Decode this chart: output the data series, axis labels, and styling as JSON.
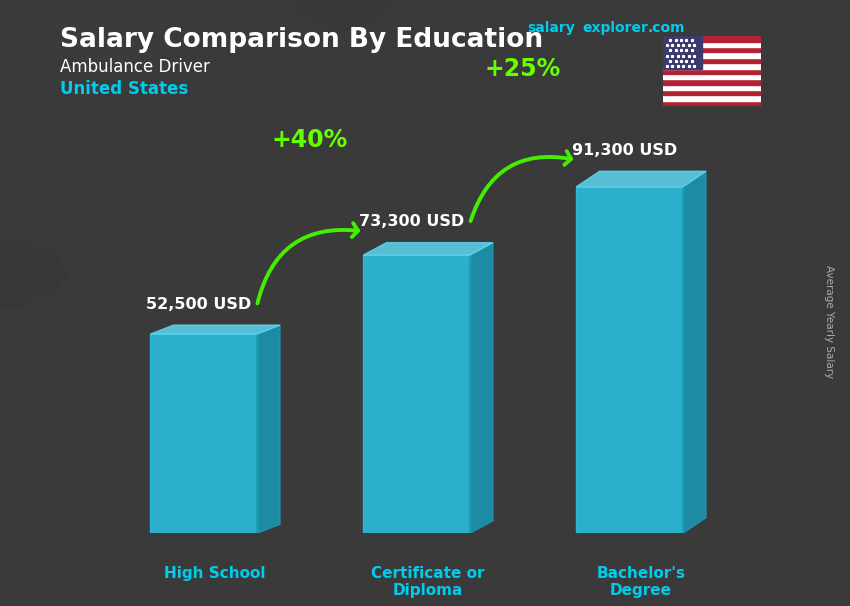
{
  "title": "Salary Comparison By Education",
  "subtitle": "Ambulance Driver",
  "location": "United States",
  "categories": [
    "High School",
    "Certificate or\nDiploma",
    "Bachelor's\nDegree"
  ],
  "values": [
    52500,
    73300,
    91300
  ],
  "labels": [
    "52,500 USD",
    "73,300 USD",
    "91,300 USD"
  ],
  "pct_labels": [
    "+40%",
    "+25%"
  ],
  "front_color": "#29c5e6",
  "side_color": "#1a9ab8",
  "top_color": "#5dd6f0",
  "bg_color": "#3a3a3a",
  "title_color": "#ffffff",
  "subtitle_color": "#ffffff",
  "location_color": "#00ccee",
  "label_color": "#ffffff",
  "xlabel_color": "#00ccee",
  "pct_color": "#66ff00",
  "arrow_color": "#44ee00",
  "watermark_color": "#00ccee",
  "ylabel_text": "Average Yearly Salary",
  "ylim_max": 115000,
  "bar_width": 0.55,
  "x_positions": [
    1.0,
    2.1,
    3.2
  ]
}
